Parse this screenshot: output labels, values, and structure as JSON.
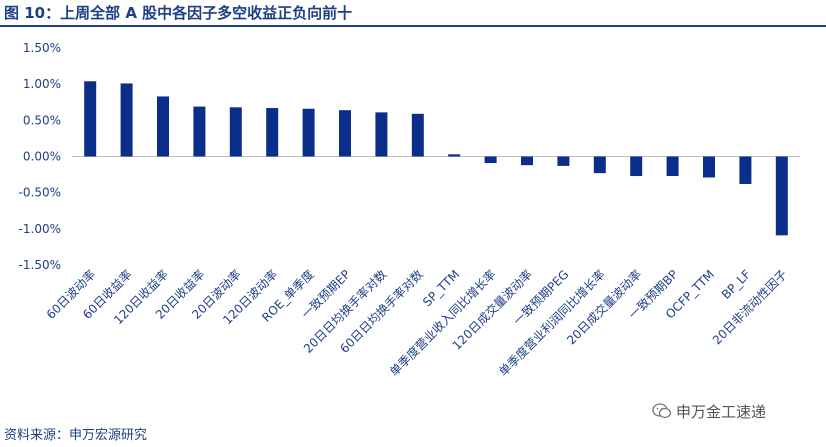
{
  "header": {
    "title": "图 10：上周全部 A 股中各因子多空收益正负向前十"
  },
  "footer": {
    "source": "资料来源：申万宏源研究"
  },
  "watermark": {
    "text": "申万金工速递",
    "icon": "wechat-icon"
  },
  "colors": {
    "bar": "#0b2e8a",
    "title": "#1f3f86",
    "tick_text": "#1f3f86",
    "axis": "#bfbfbf"
  },
  "chart_data": {
    "type": "bar",
    "categories": [
      "60日波动率",
      "60日收益率",
      "120日收益率",
      "20日收益率",
      "20日波动率",
      "120日波动率",
      "ROE_单季度",
      "一致预期EP",
      "20日日均换手率对数",
      "60日日均换手率对数",
      "SP_TTM",
      "单季度营业收入同比增长率",
      "120日成交量波动率",
      "一致预期PEG",
      "单季度营业利润同比增长率",
      "20日成交量波动率",
      "一致预期BP",
      "OCFP_TTM",
      "BP_LF",
      "20日非流动性因子"
    ],
    "values": [
      1.04,
      1.01,
      0.83,
      0.69,
      0.68,
      0.67,
      0.66,
      0.64,
      0.61,
      0.59,
      0.03,
      -0.09,
      -0.12,
      -0.13,
      -0.23,
      -0.27,
      -0.27,
      -0.29,
      -0.38,
      -1.09
    ],
    "ylim": [
      -1.5,
      1.5
    ],
    "yticks": [
      "1.50%",
      "1.00%",
      "0.50%",
      "0.00%",
      "-0.50%",
      "-1.00%",
      "-1.50%"
    ],
    "ytick_values": [
      1.5,
      1.0,
      0.5,
      0.0,
      -0.5,
      -1.0,
      -1.5
    ],
    "grid": false,
    "legend": false
  }
}
